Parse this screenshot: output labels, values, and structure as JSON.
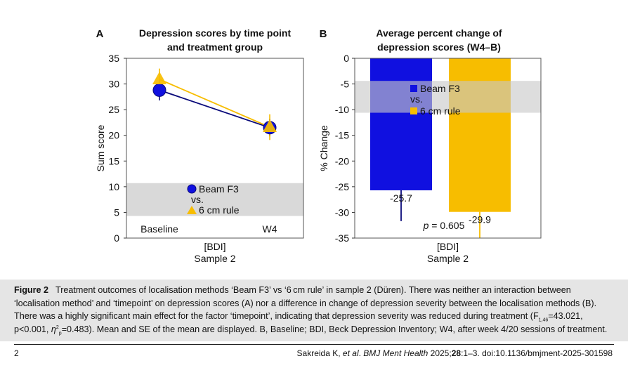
{
  "chart_data": [
    {
      "panel": "A",
      "type": "line",
      "title": [
        "Depression scores by time point",
        "and treatment group"
      ],
      "ylabel": "Sum score",
      "xlabel": [
        "[BDI]",
        "Sample 2"
      ],
      "categories": [
        "Baseline",
        "W4"
      ],
      "ylim": [
        0,
        35
      ],
      "yticks": [
        0,
        5,
        10,
        15,
        20,
        25,
        30,
        35
      ],
      "grid": false,
      "legend_position": "bottom-center",
      "series": [
        {
          "name": "Beam F3",
          "marker": "circle",
          "values": [
            28.8,
            21.5
          ],
          "error": [
            2.0,
            1.7
          ]
        },
        {
          "name": "6 cm rule",
          "marker": "triangle",
          "values": [
            30.9,
            21.6
          ],
          "error": [
            2.1,
            2.5
          ]
        }
      ],
      "legend": {
        "items": [
          "Beam F3",
          "6 cm rule"
        ],
        "connector": "vs."
      }
    },
    {
      "panel": "B",
      "type": "bar",
      "title": [
        "Average percent change of",
        "depression scores (W4–B)"
      ],
      "ylabel": "% Change",
      "xlabel": [
        "[BDI]",
        "Sample 2"
      ],
      "ylim": [
        -35,
        0
      ],
      "yticks": [
        0,
        -5,
        -10,
        -15,
        -20,
        -25,
        -30,
        -35
      ],
      "grid": false,
      "legend_position": "top-center",
      "series": [
        {
          "name": "Beam F3",
          "value": -25.7,
          "error": 6.0
        },
        {
          "name": "6 cm rule",
          "value": -29.9,
          "error": 5.2
        }
      ],
      "value_labels": [
        "-25.7",
        "-29.9"
      ],
      "annotation_prefix": "p",
      "annotation_rest": " = 0.605",
      "legend": {
        "items": [
          "Beam F3",
          "6 cm rule"
        ],
        "connector": "vs."
      }
    }
  ],
  "colors": {
    "beam": "#1010e0",
    "beam_dark": "#0a0a7a",
    "rule": "#f7bd00",
    "legend_band": "#d9d9d9"
  },
  "caption": {
    "label": "Figure 2",
    "line1": "Treatment outcomes of localisation methods ‘Beam F3’ vs ‘6 cm rule’ in sample 2 (Düren). There was neither an interaction between",
    "line2": "‘localisation method’ and ‘timepoint’ on depression scores (A) nor a difference in change of depression severity between the localisation methods (B).",
    "line3a": "There was a highly significant main effect for the factor ‘timepoint’, indicating that depression severity was reduced during treatment (F",
    "line3sub": "1,46",
    "line3b": "=43.021,",
    "line4a": "p<0.001, ",
    "eta": "η",
    "eta_sup": "2",
    "eta_sub": "p",
    "line4b": "=0.483). Mean and SE of the mean are displayed. B, Baseline; BDI, Beck Depression Inventory; W4, after week 4/20 sessions of treatment."
  },
  "footer": {
    "page_number": "2",
    "cite_a": "Sakreida K, ",
    "cite_etal": "et al",
    "cite_b": ". ",
    "cite_journal": "BMJ Ment Health",
    "cite_c": " 2025;",
    "cite_vol": "28",
    "cite_d": ":1–3. doi:10.1136/bmjment-2025-301598"
  }
}
